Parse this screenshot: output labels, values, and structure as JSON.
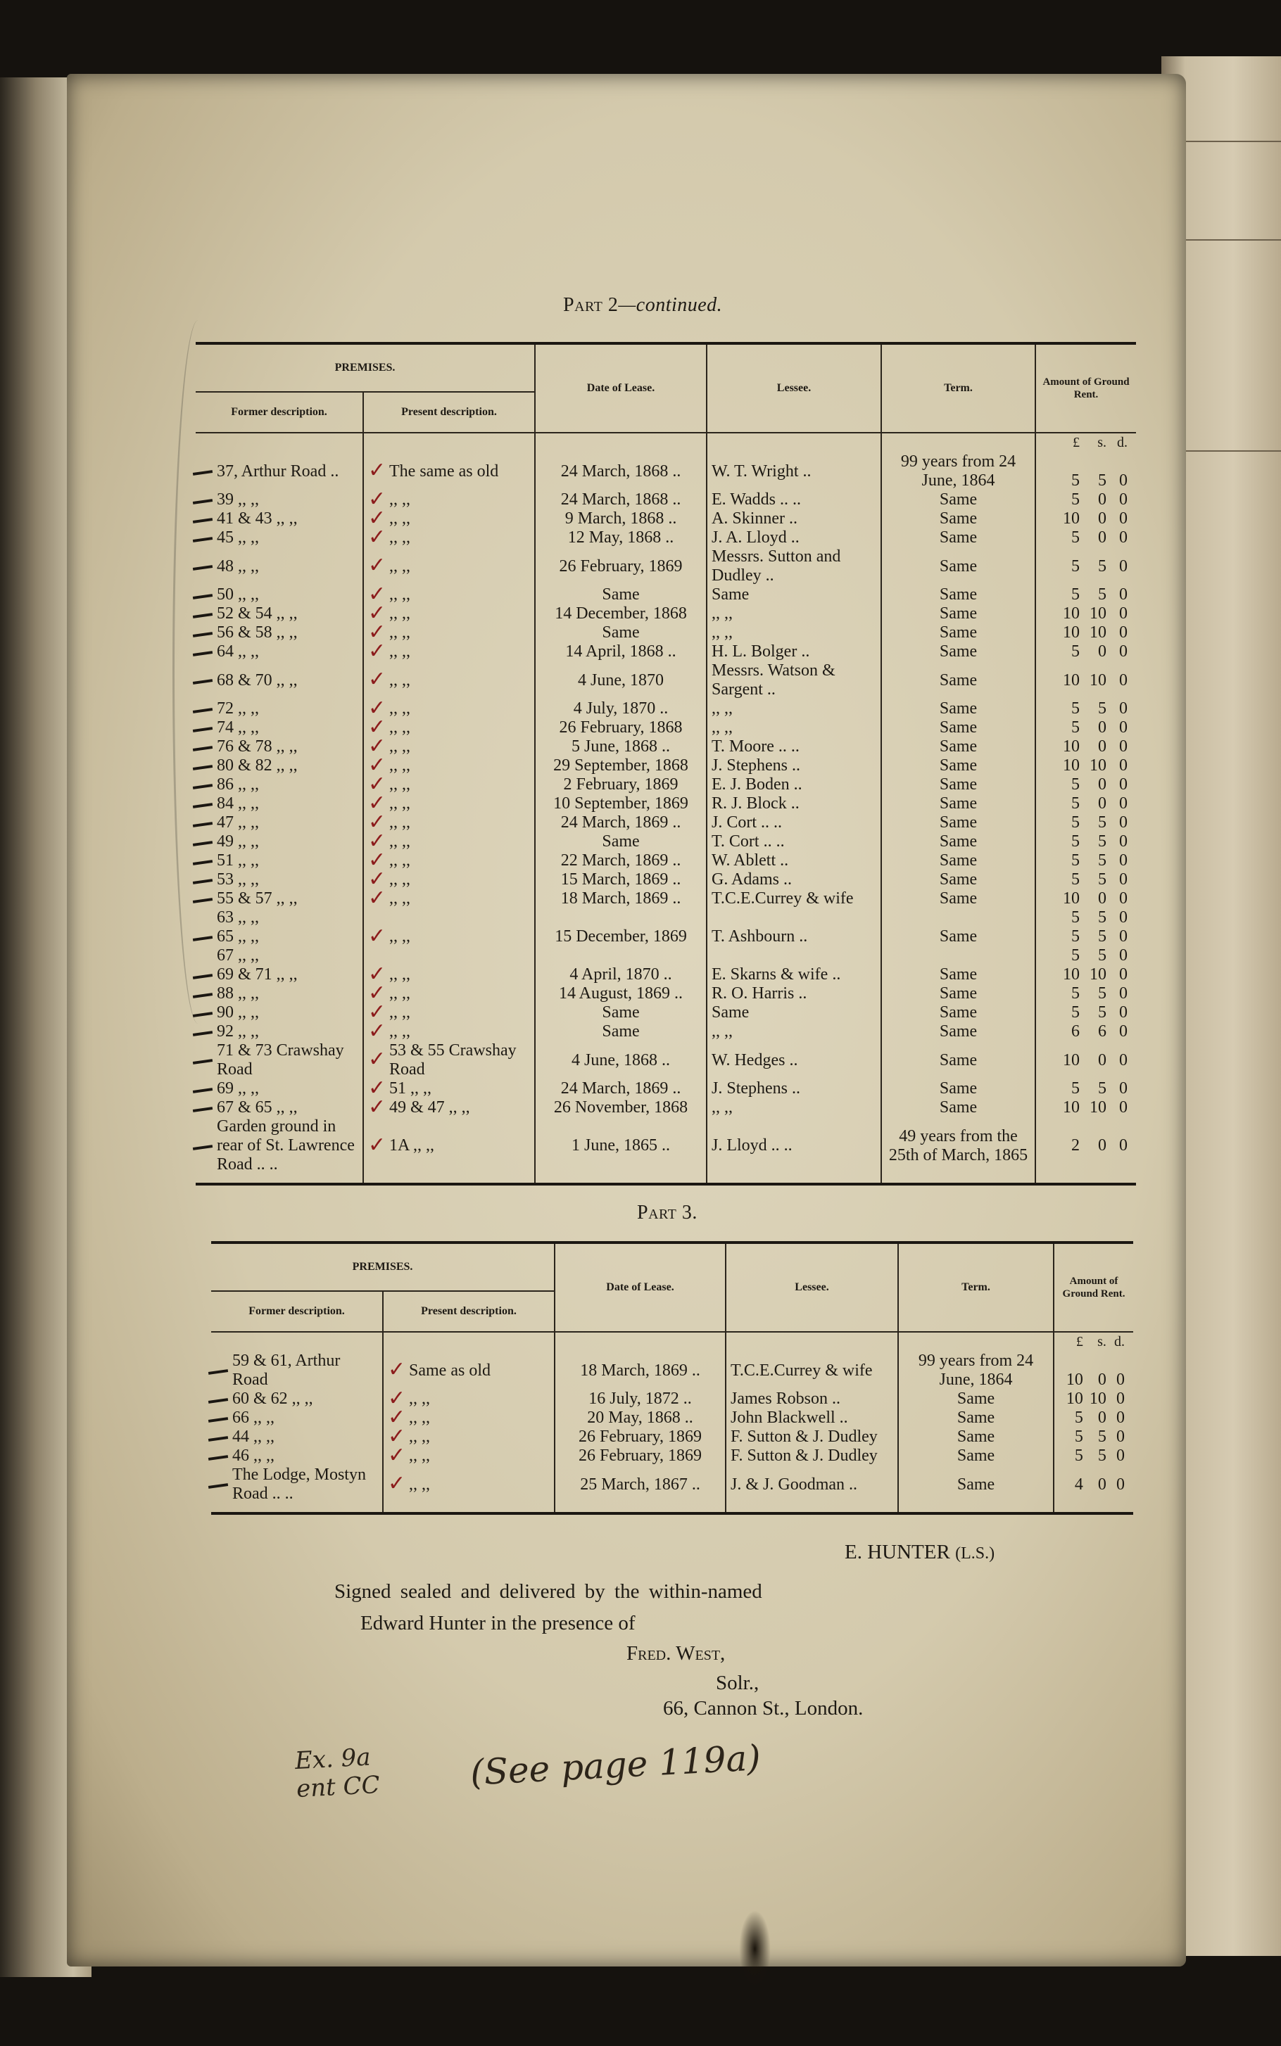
{
  "part2": {
    "title_prefix": "Part 2",
    "title_suffix": "—continued.",
    "headers": {
      "premises": "PREMISES.",
      "former": "Former description.",
      "present": "Present description.",
      "date": "Date of Lease.",
      "lessee": "Lessee.",
      "term": "Term.",
      "rent": "Amount of Ground Rent.",
      "pounds": "£",
      "shillings": "s.",
      "pence": "d."
    },
    "rows": [
      {
        "former": "37, Arthur Road ..",
        "present": "The same as old",
        "date": "24 March, 1868 ..",
        "lessee": "W. T. Wright      ..",
        "term": "99 years from 24\nJune, 1864",
        "l": "\n5",
        "s": "\n5",
        "d": "\n0"
      },
      {
        "former": "39      ,,      ,,",
        "present": ",,      ,,",
        "date": "24 March, 1868 ..",
        "lessee": "E. Wadds ..      ..",
        "term": "Same",
        "l": "5",
        "s": "0",
        "d": "0"
      },
      {
        "former": "41 & 43 ,,    ,,",
        "present": ",,      ,,",
        "date": "9 March, 1868 ..",
        "lessee": "A. Skinner        ..",
        "term": "Same",
        "l": "10",
        "s": "0",
        "d": "0"
      },
      {
        "former": "45      ,,      ,,",
        "present": ",,      ,,",
        "date": "12 May, 1868   ..",
        "lessee": "J. A. Lloyd       ..",
        "term": "Same",
        "l": "5",
        "s": "0",
        "d": "0"
      },
      {
        "former": "48      ,,      ,,",
        "present": ",,      ,,",
        "date": "26 February, 1869",
        "lessee": "Messrs. Sutton and\nDudley ..",
        "term": "Same",
        "l": "5",
        "s": "5",
        "d": "0"
      },
      {
        "former": "50      ,,      ,,",
        "present": ",,      ,,",
        "date": "Same",
        "lessee": "Same",
        "term": "Same",
        "l": "5",
        "s": "5",
        "d": "0"
      },
      {
        "former": "52 & 54 ,,    ,,",
        "present": ",,      ,,",
        "date": "14 December, 1868",
        "lessee": ",,      ,,",
        "term": "Same",
        "l": "10",
        "s": "10",
        "d": "0"
      },
      {
        "former": "56 & 58 ,,    ,,",
        "present": ",,      ,,",
        "date": "Same",
        "lessee": ",,      ,,",
        "term": "Same",
        "l": "10",
        "s": "10",
        "d": "0"
      },
      {
        "former": "64      ,,      ,,",
        "present": ",,      ,,",
        "date": "14 April, 1868  ..",
        "lessee": "H. L. Bolger      ..",
        "term": "Same",
        "l": "5",
        "s": "0",
        "d": "0"
      },
      {
        "former": "68 & 70 ,,    ,,",
        "present": ",,      ,,",
        "date": "4 June, 1870",
        "lessee": "Messrs. Watson &\nSargent ..",
        "term": "Same",
        "l": "10",
        "s": "10",
        "d": "0"
      },
      {
        "former": "72      ,,      ,,",
        "present": ",,      ,,",
        "date": "4 July, 1870   ..",
        "lessee": ",,      ,,",
        "term": "Same",
        "l": "5",
        "s": "5",
        "d": "0"
      },
      {
        "former": "74      ,,      ,,",
        "present": ",,      ,,",
        "date": "26 February, 1868",
        "lessee": ",,      ,,",
        "term": "Same",
        "l": "5",
        "s": "0",
        "d": "0"
      },
      {
        "former": "76 & 78 ,,    ,,",
        "present": ",,      ,,",
        "date": "5 June, 1868   ..",
        "lessee": "T. Moore ..      ..",
        "term": "Same",
        "l": "10",
        "s": "0",
        "d": "0"
      },
      {
        "former": "80 & 82 ,,    ,,",
        "present": ",,      ,,",
        "date": "29 September, 1868",
        "lessee": "J. Stephens       ..",
        "term": "Same",
        "l": "10",
        "s": "10",
        "d": "0"
      },
      {
        "former": "86      ,,      ,,",
        "present": ",,      ,,",
        "date": "2 February, 1869",
        "lessee": "E. J. Boden       ..",
        "term": "Same",
        "l": "5",
        "s": "0",
        "d": "0"
      },
      {
        "former": "84      ,,      ,,",
        "present": ",,      ,,",
        "date": "10 September, 1869",
        "lessee": "R. J. Block       ..",
        "term": "Same",
        "l": "5",
        "s": "0",
        "d": "0"
      },
      {
        "former": "47      ,,      ,,",
        "present": ",,      ,,",
        "date": "24 March, 1869 ..",
        "lessee": "J. Cort   ..      ..",
        "term": "Same",
        "l": "5",
        "s": "5",
        "d": "0"
      },
      {
        "former": "49      ,,      ,,",
        "present": ",,      ,,",
        "date": "Same",
        "lessee": "T. Cort   ..      ..",
        "term": "Same",
        "l": "5",
        "s": "5",
        "d": "0"
      },
      {
        "former": "51      ,,      ,,",
        "present": ",,      ,,",
        "date": "22 March, 1869 ..",
        "lessee": "W. Ablett         ..",
        "term": "Same",
        "l": "5",
        "s": "5",
        "d": "0"
      },
      {
        "former": "53      ,,      ,,",
        "present": ",,      ,,",
        "date": "15 March, 1869 ..",
        "lessee": "G. Adams          ..",
        "term": "Same",
        "l": "5",
        "s": "5",
        "d": "0"
      },
      {
        "former": "55 & 57 ,,    ,,",
        "present": ",,      ,,",
        "date": "18 March, 1869 ..",
        "lessee": "T.C.E.Currey & wife",
        "term": "Same",
        "l": "10",
        "s": "0",
        "d": "0"
      },
      {
        "former": "63      ,,      ,,\n65      ,,      ,,\n67      ,,      ,,",
        "present": ",,      ,,",
        "date": "15 December, 1869",
        "lessee": "T. Ashbourn       ..",
        "term": "Same",
        "l": "5\n5\n5",
        "s": "5\n5\n5",
        "d": "0\n0\n0"
      },
      {
        "former": "69 & 71 ,,    ,,",
        "present": ",,      ,,",
        "date": "4 April, 1870   ..",
        "lessee": "E. Skarns & wife ..",
        "term": "Same",
        "l": "10",
        "s": "10",
        "d": "0"
      },
      {
        "former": "88      ,,      ,,",
        "present": ",,      ,,",
        "date": "14 August, 1869 ..",
        "lessee": "R. O. Harris      ..",
        "term": "Same",
        "l": "5",
        "s": "5",
        "d": "0"
      },
      {
        "former": "90      ,,      ,,",
        "present": ",,      ,,",
        "date": "Same",
        "lessee": "Same",
        "term": "Same",
        "l": "5",
        "s": "5",
        "d": "0"
      },
      {
        "former": "92      ,,      ,,",
        "present": ",,      ,,",
        "date": "Same",
        "lessee": ",,      ,,",
        "term": "Same",
        "l": "6",
        "s": "6",
        "d": "0"
      },
      {
        "former": "71 & 73 Crawshay Road",
        "present": "53 & 55 Crawshay Road",
        "date": "4 June, 1868   ..",
        "lessee": "W. Hedges         ..",
        "term": "Same",
        "l": "10",
        "s": "0",
        "d": "0"
      },
      {
        "former": "69      ,,      ,,",
        "present": "51      ,,      ,,",
        "date": "24 March, 1869 ..",
        "lessee": "J. Stephens       ..",
        "term": "Same",
        "l": "5",
        "s": "5",
        "d": "0"
      },
      {
        "former": "67 & 65 ,,    ,,",
        "present": "49 & 47 ,,    ,,",
        "date": "26 November, 1868",
        "lessee": ",,      ,,",
        "term": "Same",
        "l": "10",
        "s": "10",
        "d": "0"
      },
      {
        "former": "Garden ground in\nrear of St. Lawrence\nRoad ..      ..",
        "present": "1A     ,,      ,,",
        "date": "1 June, 1865   ..",
        "lessee": "J. Lloyd ..       ..",
        "term": "49 years from the\n25th of March, 1865",
        "l": "2",
        "s": "0",
        "d": "0"
      }
    ]
  },
  "part3": {
    "title": "Part 3.",
    "headers": {
      "premises": "PREMISES.",
      "former": "Former description.",
      "present": "Present description.",
      "date": "Date of Lease.",
      "lessee": "Lessee.",
      "term": "Term.",
      "rent": "Amount of Ground Rent.",
      "pounds": "£",
      "shillings": "s.",
      "pence": "d."
    },
    "rows": [
      {
        "former": "59 & 61, Arthur Road",
        "present": "Same   as   old",
        "date": "18 March, 1869 ..",
        "lessee": "T.C.E.Currey & wife",
        "term": "99 years from 24\nJune, 1864",
        "l": "\n10",
        "s": "\n0",
        "d": "\n0"
      },
      {
        "former": "60 & 62 ,,    ,,",
        "present": ",,      ,,",
        "date": "16 July, 1872   ..",
        "lessee": "James Robson   ..",
        "term": "Same",
        "l": "10",
        "s": "10",
        "d": "0"
      },
      {
        "former": "66      ,,      ,,",
        "present": ",,      ,,",
        "date": "20 May, 1868    ..",
        "lessee": "John Blackwell  ..",
        "term": "Same",
        "l": "5",
        "s": "0",
        "d": "0"
      },
      {
        "former": "44      ,,      ,,",
        "present": ",,      ,,",
        "date": "26 February, 1869",
        "lessee": "F. Sutton & J. Dudley",
        "term": "Same",
        "l": "5",
        "s": "5",
        "d": "0"
      },
      {
        "former": "46      ,,      ,,",
        "present": ",,      ,,",
        "date": "26 February, 1869",
        "lessee": "F. Sutton & J. Dudley",
        "term": "Same",
        "l": "5",
        "s": "5",
        "d": "0"
      },
      {
        "former": "The Lodge, Mostyn\nRoad ..      ..",
        "present": ",,      ,,",
        "date": "25 March, 1867 ..",
        "lessee": "J. & J. Goodman ..",
        "term": "Same",
        "l": "4",
        "s": "0",
        "d": "0"
      }
    ]
  },
  "signature": {
    "signer": "E. HUNTER",
    "seal": "(L.S.)",
    "attestation_line1": "Signed sealed and delivered by the within-named",
    "attestation_line2": "Edward Hunter in the presence of",
    "witness": "Fred. West,",
    "witness_title": "Solr.,",
    "witness_address": "66, Cannon St., London."
  },
  "handwritten": {
    "note": "(See page 119a)",
    "margin_note": "Ex. 9a\nent CC"
  },
  "colors": {
    "ink": "#1e1a14",
    "red_tick": "#8c1c1c",
    "paper": "#d8cfb4"
  }
}
